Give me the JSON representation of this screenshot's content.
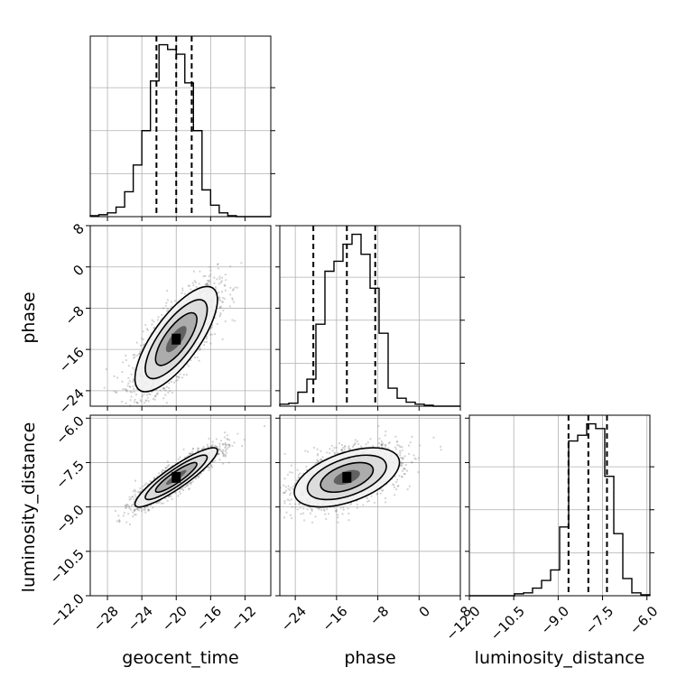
{
  "chart_data": {
    "type": "corner",
    "parameters": [
      "geocent_time",
      "phase",
      "luminosity_distance"
    ],
    "axis_labels": {
      "x": [
        "geocent_time",
        "phase",
        "luminosity_distance"
      ],
      "y": [
        "",
        "phase",
        "luminosity_distance"
      ]
    },
    "ranges": {
      "geocent_time": [
        -30,
        -9
      ],
      "phase": [
        -27,
        8
      ],
      "luminosity_distance": [
        -12,
        -5.9
      ]
    },
    "ticks": {
      "geocent_time": [
        -28,
        -24,
        -20,
        -16,
        -12
      ],
      "phase": [
        -24,
        -16,
        -8,
        0,
        8
      ],
      "luminosity_distance": [
        -12.0,
        -10.5,
        -9.0,
        -7.5,
        -6.0
      ]
    },
    "tick_labels": {
      "geocent_time": [
        "−28",
        "−24",
        "−20",
        "−16",
        "−12"
      ],
      "phase": [
        "−24",
        "−16",
        "−8",
        "0",
        "8"
      ],
      "luminosity_distance_x": [
        "−12.0",
        "−10.5",
        "−9.0",
        "−7.5",
        "−6.0"
      ],
      "luminosity_distance_y": [
        "−12.0",
        "−10.5",
        "−9.0",
        "−7.5",
        "−6.0"
      ],
      "phase_y": [
        "−24",
        "−16",
        "−8",
        "0",
        "8"
      ]
    },
    "quantiles": {
      "geocent_time": [
        -22.3,
        -20.0,
        -18.2
      ],
      "phase": [
        -20.5,
        -14.0,
        -8.5
      ],
      "luminosity_distance": [
        -8.65,
        -7.98,
        -7.35
      ]
    },
    "histograms": {
      "geocent_time": {
        "bin_edges": [
          -30,
          -29,
          -28,
          -27,
          -26,
          -25,
          -24,
          -23,
          -22,
          -21,
          -20,
          -19,
          -18,
          -17,
          -16,
          -15,
          -14,
          -13,
          -12,
          -11,
          -10,
          -9
        ],
        "counts": [
          1,
          2,
          4,
          10,
          26,
          54,
          90,
          142,
          180,
          175,
          170,
          140,
          90,
          28,
          12,
          4,
          1,
          0,
          0,
          0,
          0
        ]
      },
      "phase": {
        "bin_edges": [
          -27,
          -25.25,
          -23.5,
          -21.75,
          -20,
          -18.25,
          -16.5,
          -14.75,
          -13,
          -11.25,
          -9.5,
          -7.75,
          -6,
          -4.25,
          -2.5,
          -0.75,
          1,
          2.75,
          4.5,
          6.25,
          8
        ],
        "counts": [
          2,
          3,
          14,
          27,
          82,
          135,
          145,
          162,
          172,
          152,
          118,
          73,
          18,
          8,
          4,
          2,
          1,
          0,
          0,
          0
        ]
      },
      "luminosity_distance": {
        "bin_edges": [
          -12.0,
          -11.695,
          -11.39,
          -11.085,
          -10.78,
          -10.475,
          -10.17,
          -9.865,
          -9.56,
          -9.255,
          -8.95,
          -8.645,
          -8.34,
          -8.035,
          -7.73,
          -7.425,
          -7.12,
          -6.815,
          -6.51,
          -6.205,
          -5.9
        ],
        "counts": [
          0,
          0,
          0,
          0,
          0,
          2,
          3,
          8,
          16,
          27,
          72,
          162,
          168,
          180,
          175,
          125,
          65,
          18,
          3,
          1
        ]
      }
    },
    "joint": [
      {
        "x_param": "geocent_time",
        "y_param": "phase",
        "center": [
          -20.0,
          -14.0
        ],
        "sigma": [
          2.4,
          5.1
        ],
        "rho": 0.75
      },
      {
        "x_param": "geocent_time",
        "y_param": "luminosity_distance",
        "center": [
          -20.0,
          -8.0
        ],
        "sigma": [
          2.4,
          0.5
        ],
        "rho": 0.9
      },
      {
        "x_param": "phase",
        "y_param": "luminosity_distance",
        "center": [
          -14.0,
          -8.0
        ],
        "sigma": [
          5.1,
          0.5
        ],
        "rho": 0.5
      }
    ],
    "contour_levels_sigma": [
      0.5,
      1.0,
      1.5,
      2.0
    ],
    "grid": true,
    "colors": {
      "hist_line": "#000000",
      "quantile_line": "#000000",
      "grid": "#b0b0b0",
      "scatter": "#7f7f7f",
      "contour_fills": [
        "#f2f2f2",
        "#d9d9d9",
        "#a6a6a6",
        "#595959"
      ],
      "peak": "#000000"
    }
  }
}
